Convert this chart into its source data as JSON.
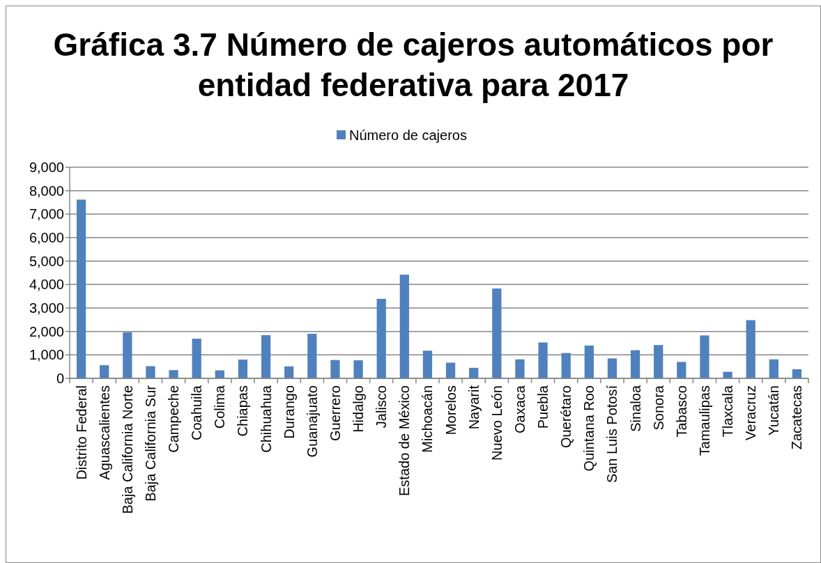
{
  "chart_data": {
    "type": "bar",
    "title": "Gráfica 3.7 Número de cajeros automáticos por entidad federativa para 2017",
    "categories": [
      "Distrito Federal",
      "Aguascalientes",
      "Baja California Norte",
      "Baja California Sur",
      "Campeche",
      "Coahuila",
      "Colima",
      "Chiapas",
      "Chihuahua",
      "Durango",
      "Guanajuato",
      "Guerrero",
      "Hidalgo",
      "Jalisco",
      "Estado de México",
      "Michoacán",
      "Morelos",
      "Nayarit",
      "Nuevo León",
      "Oaxaca",
      "Puebla",
      "Querétaro",
      "Quintana Roo",
      "San Luis Potosí",
      "Sinaloa",
      "Sonora",
      "Tabasco",
      "Tamaulipas",
      "Tlaxcala",
      "Veracruz",
      "Yucatán",
      "Zacatecas"
    ],
    "series": [
      {
        "name": "Número de cajeros",
        "color": "#4f81bd",
        "values": [
          7620,
          560,
          1960,
          520,
          350,
          1690,
          340,
          800,
          1840,
          510,
          1900,
          780,
          770,
          3390,
          4420,
          1180,
          670,
          450,
          3830,
          810,
          1530,
          1080,
          1400,
          850,
          1200,
          1420,
          700,
          1830,
          280,
          2480,
          810,
          390
        ]
      }
    ],
    "ylim": [
      0,
      9000
    ],
    "yticks": [
      {
        "value": 0,
        "label": "0"
      },
      {
        "value": 1000,
        "label": "1,000"
      },
      {
        "value": 2000,
        "label": "2,000"
      },
      {
        "value": 3000,
        "label": "3,000"
      },
      {
        "value": 4000,
        "label": "4,000"
      },
      {
        "value": 5000,
        "label": "5,000"
      },
      {
        "value": 6000,
        "label": "6,000"
      },
      {
        "value": 7000,
        "label": "7,000"
      },
      {
        "value": 8000,
        "label": "8,000"
      },
      {
        "value": 9000,
        "label": "9,000"
      }
    ],
    "grid": "y",
    "legend": "top"
  }
}
